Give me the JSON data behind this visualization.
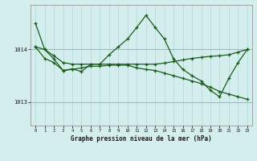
{
  "bg_color": "#d4eeee",
  "grid_v_color": "#b0d8d8",
  "grid_h_color": "#90c0c0",
  "line_color": "#1a5c1a",
  "xlim": [
    -0.5,
    23.5
  ],
  "ylim": [
    1012.55,
    1014.85
  ],
  "yticks": [
    1013,
    1014
  ],
  "xticks": [
    0,
    1,
    2,
    3,
    4,
    5,
    6,
    7,
    8,
    9,
    10,
    11,
    12,
    13,
    14,
    15,
    16,
    17,
    18,
    19,
    20,
    21,
    22,
    23
  ],
  "xlabel": "Graphe pression niveau de la mer (hPa)",
  "line1_x": [
    0,
    1,
    2,
    3,
    4,
    5,
    6,
    7,
    8,
    9,
    10,
    11,
    12,
    13,
    14,
    15,
    16,
    17,
    18,
    19,
    20,
    21,
    22,
    23
  ],
  "line1_y": [
    1014.05,
    1014.0,
    1013.88,
    1013.75,
    1013.72,
    1013.72,
    1013.72,
    1013.72,
    1013.72,
    1013.72,
    1013.72,
    1013.72,
    1013.72,
    1013.72,
    1013.74,
    1013.77,
    1013.8,
    1013.83,
    1013.85,
    1013.87,
    1013.88,
    1013.9,
    1013.95,
    1014.0
  ],
  "line2_x": [
    0,
    1,
    2,
    3,
    4,
    5,
    6,
    7,
    8,
    9,
    10,
    11,
    12,
    13,
    14,
    15,
    16,
    17,
    18,
    19,
    20,
    21,
    22,
    23
  ],
  "line2_y": [
    1014.05,
    1013.83,
    1013.75,
    1013.6,
    1013.62,
    1013.65,
    1013.68,
    1013.68,
    1013.7,
    1013.7,
    1013.7,
    1013.65,
    1013.62,
    1013.6,
    1013.55,
    1013.5,
    1013.45,
    1013.4,
    1013.35,
    1013.28,
    1013.2,
    1013.15,
    1013.1,
    1013.05
  ],
  "line3_x": [
    0,
    1,
    2,
    3,
    4,
    5,
    6,
    7,
    8,
    9,
    10,
    11,
    12,
    13,
    14,
    15,
    16,
    17,
    18,
    19,
    20,
    21,
    22,
    23
  ],
  "line3_y": [
    1014.5,
    1014.0,
    1013.82,
    1013.6,
    1013.63,
    1013.58,
    1013.72,
    1013.72,
    1013.9,
    1014.05,
    1014.2,
    1014.42,
    1014.65,
    1014.42,
    1014.2,
    1013.82,
    1013.62,
    1013.5,
    1013.4,
    1013.22,
    1013.1,
    1013.45,
    1013.75,
    1014.0
  ]
}
